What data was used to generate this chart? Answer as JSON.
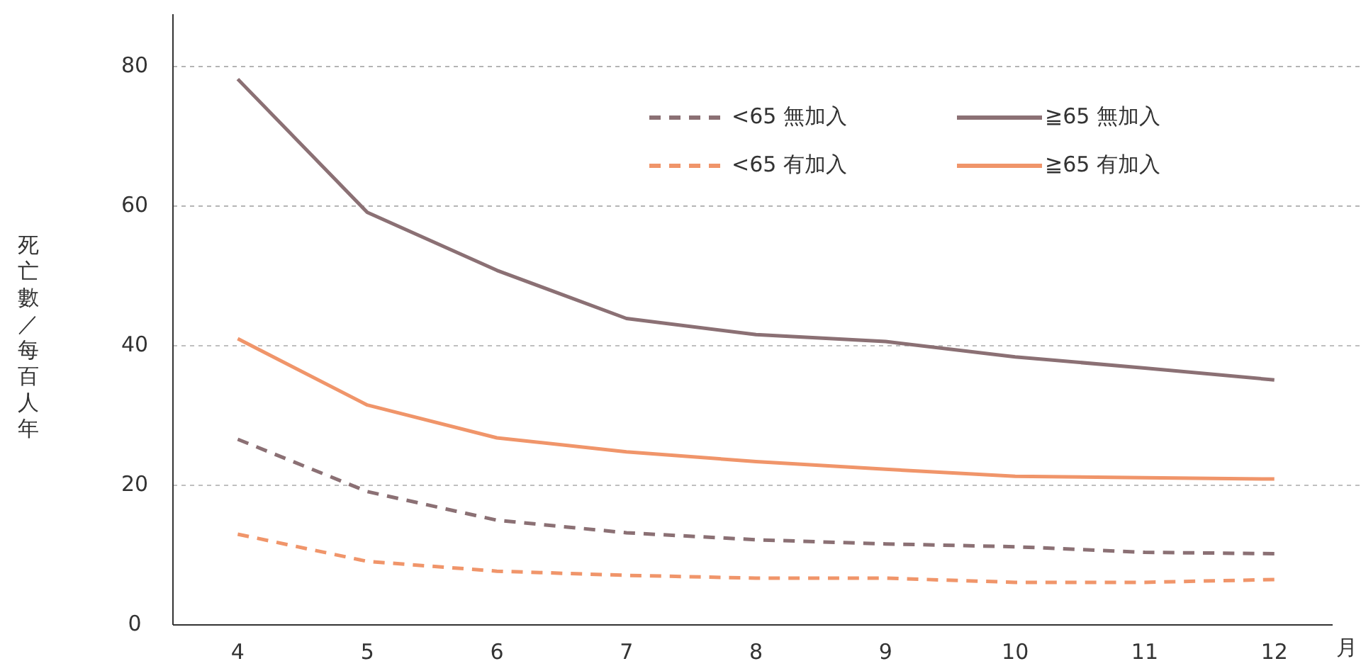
{
  "chart_data": {
    "type": "line",
    "ylabel": "死亡數／每百人年",
    "xlabel": "月",
    "x": [
      4,
      5,
      6,
      7,
      8,
      9,
      10,
      11,
      12
    ],
    "xlim": [
      3.5,
      12.45
    ],
    "xticks": [
      4,
      5,
      6,
      7,
      8,
      9,
      10,
      11,
      12
    ],
    "ylim": [
      0,
      87.5
    ],
    "yticks": [
      0,
      20,
      40,
      60,
      80
    ],
    "grid": "y",
    "legend": "top right",
    "marker": "none",
    "series": [
      {
        "name": "<65 無加入",
        "color": "#8b7074",
        "line_style": "dashed",
        "values": [
          26.6,
          19.1,
          15.0,
          13.2,
          12.2,
          11.6,
          11.2,
          10.4,
          10.2
        ]
      },
      {
        "name": "≧65 無加入",
        "color": "#8b7074",
        "line_style": "solid",
        "values": [
          78.2,
          59.1,
          50.8,
          43.9,
          41.6,
          40.6,
          38.4,
          36.8,
          35.1
        ]
      },
      {
        "name": "<65 有加入",
        "color": "#f0956a",
        "line_style": "dashed",
        "values": [
          13.0,
          9.1,
          7.7,
          7.1,
          6.7,
          6.7,
          6.1,
          6.1,
          6.5
        ]
      },
      {
        "name": "≧65 有加入",
        "color": "#f0956a",
        "line_style": "solid",
        "values": [
          41.0,
          31.5,
          26.8,
          24.8,
          23.4,
          22.3,
          21.3,
          21.1,
          20.9
        ]
      }
    ]
  }
}
